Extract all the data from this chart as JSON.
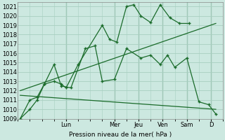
{
  "bg_color": "#cce8e0",
  "grid_color": "#a8cfc0",
  "line_color": "#1a6b2a",
  "ylabel": "Pression niveau de la mer( hPa )",
  "ylim": [
    1009,
    1021.5
  ],
  "yticks": [
    1009,
    1010,
    1011,
    1012,
    1013,
    1014,
    1015,
    1016,
    1017,
    1018,
    1019,
    1020,
    1021
  ],
  "day_labels": [
    "Lun",
    "Mer",
    "Jeu",
    "Ven",
    "Sam",
    "D"
  ],
  "day_positions": [
    2,
    4,
    5,
    6,
    7,
    8
  ],
  "xlim": [
    0,
    8.5
  ],
  "series": [
    {
      "x": [
        0.1,
        0.5,
        0.8,
        1.1,
        1.5,
        1.8,
        2.0,
        2.5,
        3.5,
        3.8,
        4.1,
        4.5,
        4.8,
        5.1,
        5.5,
        5.9,
        6.3,
        6.7,
        7.1
      ],
      "y": [
        1009,
        1010,
        1011,
        1012.7,
        1013,
        1012.7,
        1012.3,
        1014.8,
        1019.0,
        1017.5,
        1017.2,
        1021.0,
        1021.2,
        1020.0,
        1019.3,
        1021.2,
        1019.8,
        1019.2,
        1019.2
      ],
      "marker": "+"
    },
    {
      "x": [
        0.1,
        0.5,
        0.8,
        1.1,
        1.5,
        1.8,
        2.2,
        2.8,
        3.2,
        3.5,
        4.0,
        4.5,
        5.1,
        5.5,
        5.9,
        6.2,
        6.5,
        7.0,
        7.5,
        7.9,
        8.2
      ],
      "y": [
        1009,
        1011,
        1011.3,
        1012.7,
        1014.8,
        1012.5,
        1012.3,
        1016.5,
        1016.8,
        1013.0,
        1013.2,
        1016.5,
        1015.5,
        1015.8,
        1014.8,
        1015.8,
        1014.5,
        1015.5,
        1010.8,
        1010.5,
        1009.5
      ],
      "marker": "+"
    },
    {
      "x": [
        0.1,
        8.2
      ],
      "y": [
        1012.0,
        1019.2
      ],
      "marker": null
    },
    {
      "x": [
        0.1,
        8.2
      ],
      "y": [
        1011.5,
        1010.0
      ],
      "marker": null
    }
  ]
}
